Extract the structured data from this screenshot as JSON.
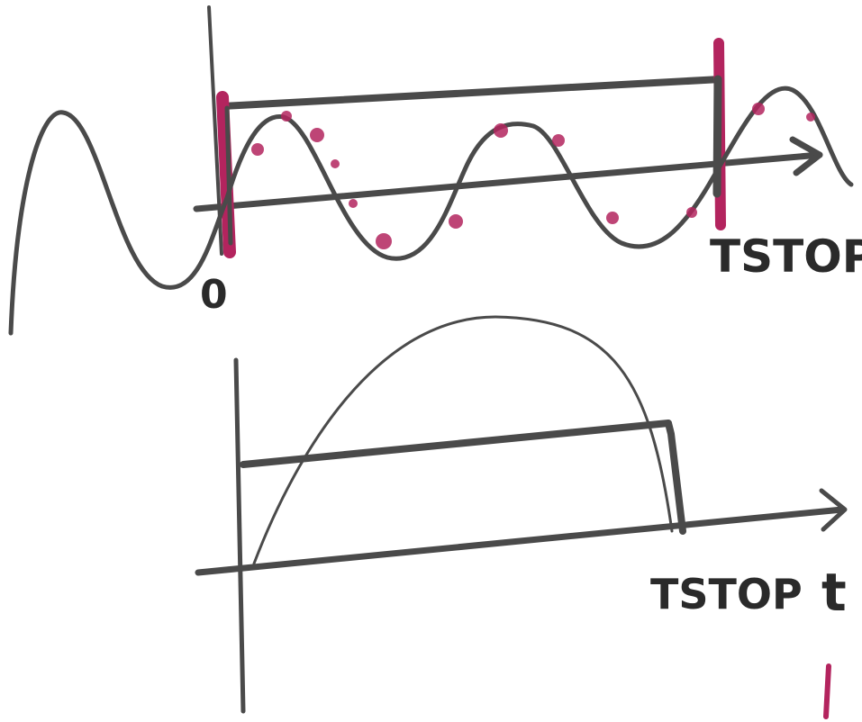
{
  "top": {
    "origin_label": "0",
    "stop_label": "TSTOP"
  },
  "bottom": {
    "stop_label": "TSTOP",
    "axis_label": "t"
  }
}
